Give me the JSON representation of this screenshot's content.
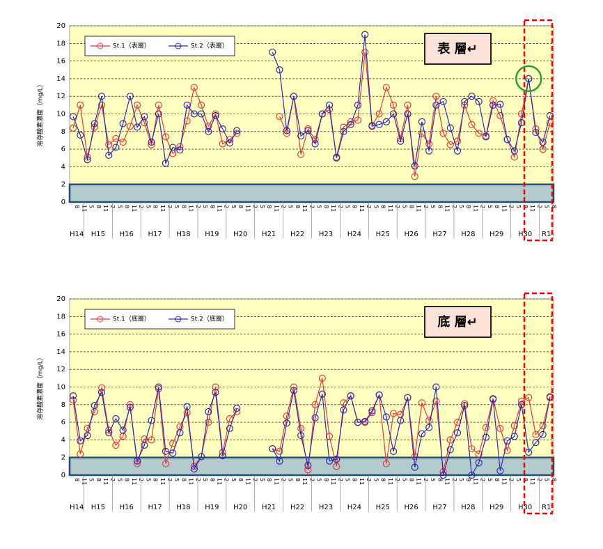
{
  "chart_data": [
    {
      "type": "line",
      "ylabel": "溶存酸素濃度（mg/L）",
      "annotation": "表 層↵",
      "categories": [
        "8",
        "11",
        "5",
        "8",
        "11",
        "2",
        "5",
        "8",
        "11",
        "2",
        "5",
        "8",
        "11",
        "2",
        "5",
        "8",
        "11",
        "2",
        "5",
        "8",
        "11",
        "2",
        "5",
        "8",
        "11",
        "2",
        "5",
        "8",
        "11",
        "2",
        "5",
        "8",
        "11",
        "2",
        "5",
        "8",
        "11",
        "2",
        "5",
        "8",
        "11",
        "2",
        "5",
        "8",
        "11",
        "2",
        "5",
        "8",
        "11",
        "2",
        "5",
        "8",
        "11",
        "2",
        "5",
        "8",
        "11",
        "2",
        "5",
        "8",
        "11",
        "2",
        "5",
        "8",
        "11",
        "2",
        "5",
        "8"
      ],
      "x_groups": [
        {
          "label": "H14",
          "span": 2
        },
        {
          "label": "H15",
          "span": 4
        },
        {
          "label": "H16",
          "span": 4
        },
        {
          "label": "H17",
          "span": 4
        },
        {
          "label": "H18",
          "span": 4
        },
        {
          "label": "H19",
          "span": 4
        },
        {
          "label": "H20",
          "span": 4
        },
        {
          "label": "H21",
          "span": 4
        },
        {
          "label": "H22",
          "span": 4
        },
        {
          "label": "H23",
          "span": 4
        },
        {
          "label": "H24",
          "span": 4
        },
        {
          "label": "H25",
          "span": 4
        },
        {
          "label": "H26",
          "span": 4
        },
        {
          "label": "H27",
          "span": 4
        },
        {
          "label": "H28",
          "span": 4
        },
        {
          "label": "H29",
          "span": 4
        },
        {
          "label": "H30",
          "span": 4
        },
        {
          "label": "R1",
          "span": 2
        }
      ],
      "ylim": [
        0,
        20
      ],
      "yticks": [
        0,
        2,
        4,
        6,
        8,
        10,
        12,
        14,
        16,
        18,
        20
      ],
      "grid": true,
      "band": [
        0,
        2
      ],
      "series": [
        {
          "name": "St.1（表層）",
          "color": "#e8383d",
          "values": [
            8.4,
            11,
            5.1,
            8.5,
            11,
            6.5,
            7.2,
            6.8,
            8.6,
            11,
            9,
            6.5,
            11,
            7.4,
            5.5,
            6.3,
            9.2,
            13,
            11,
            8.6,
            10,
            6.6,
            7.1,
            7.8,
            null,
            null,
            null,
            null,
            null,
            9.7,
            7.8,
            12,
            5.4,
            8.3,
            7.1,
            10,
            10.5,
            5.1,
            8.5,
            9.1,
            9.3,
            17,
            8.7,
            10,
            13,
            11,
            7.2,
            11,
            2.9,
            7.8,
            6.6,
            12,
            7.8,
            6.5,
            6.9,
            11,
            8.8,
            7.8,
            7.5,
            11.5,
            9.8,
            7.1,
            5.1,
            10,
            14,
            8.3,
            6,
            9
          ]
        },
        {
          "name": "St.2（表層）",
          "color": "#2b2bb5",
          "values": [
            9.7,
            7.6,
            4.8,
            8.9,
            12,
            5.3,
            6.2,
            8.9,
            12,
            8.5,
            9.7,
            6.8,
            10,
            4.4,
            6.2,
            5.9,
            11,
            10,
            10,
            8,
            9.8,
            8.3,
            6.7,
            8.1,
            null,
            null,
            null,
            null,
            17,
            15,
            8.1,
            12,
            7.5,
            8.1,
            6.6,
            10,
            11,
            5,
            8,
            8.8,
            11,
            19,
            8.6,
            8.8,
            9.1,
            10,
            6.9,
            10,
            4.1,
            9.1,
            5.8,
            11,
            11.4,
            8.4,
            5.8,
            11.4,
            12,
            11.4,
            7.4,
            11,
            11.1,
            7.1,
            5.8,
            9,
            14,
            7.9,
            6.8,
            9.8
          ]
        }
      ]
    },
    {
      "type": "line",
      "ylabel": "溶存酸素濃度（mg/L）",
      "annotation": "底 層↵",
      "categories": [
        "8",
        "11",
        "5",
        "8",
        "11",
        "2",
        "5",
        "8",
        "11",
        "2",
        "5",
        "8",
        "11",
        "2",
        "5",
        "8",
        "11",
        "2",
        "5",
        "8",
        "11",
        "2",
        "5",
        "8",
        "11",
        "2",
        "5",
        "8",
        "11",
        "2",
        "5",
        "8",
        "11",
        "2",
        "5",
        "8",
        "11",
        "2",
        "5",
        "8",
        "11",
        "2",
        "5",
        "8",
        "11",
        "2",
        "5",
        "8",
        "11",
        "2",
        "5",
        "8",
        "11",
        "2",
        "5",
        "8",
        "11",
        "2",
        "5",
        "8",
        "11",
        "2",
        "5",
        "8",
        "11",
        "2",
        "5",
        "8"
      ],
      "x_groups": [
        {
          "label": "H14",
          "span": 2
        },
        {
          "label": "H15",
          "span": 4
        },
        {
          "label": "H16",
          "span": 4
        },
        {
          "label": "H17",
          "span": 4
        },
        {
          "label": "H18",
          "span": 4
        },
        {
          "label": "H19",
          "span": 4
        },
        {
          "label": "H20",
          "span": 4
        },
        {
          "label": "H21",
          "span": 4
        },
        {
          "label": "H22",
          "span": 4
        },
        {
          "label": "H23",
          "span": 4
        },
        {
          "label": "H24",
          "span": 4
        },
        {
          "label": "H25",
          "span": 4
        },
        {
          "label": "H26",
          "span": 4
        },
        {
          "label": "H27",
          "span": 4
        },
        {
          "label": "H28",
          "span": 4
        },
        {
          "label": "H29",
          "span": 4
        },
        {
          "label": "H30",
          "span": 4
        },
        {
          "label": "R1",
          "span": 2
        }
      ],
      "ylim": [
        0,
        20
      ],
      "yticks": [
        0,
        2,
        4,
        6,
        8,
        10,
        12,
        14,
        16,
        18,
        20
      ],
      "grid": true,
      "band": [
        0,
        2
      ],
      "series": [
        {
          "name": "St.1（底層）",
          "color": "#e8383d",
          "values": [
            8.5,
            2.4,
            5.3,
            7.2,
            9.9,
            5.1,
            3.4,
            4.4,
            8,
            1.3,
            4.1,
            4,
            9.8,
            1.3,
            3.6,
            5.5,
            7.1,
            1,
            2.1,
            6,
            10,
            2.6,
            6.4,
            7.2,
            null,
            null,
            null,
            null,
            3,
            2.7,
            6.7,
            10,
            5.3,
            0.6,
            8,
            11,
            4.4,
            1,
            8.2,
            9,
            6,
            6,
            7.1,
            9.1,
            1.3,
            7,
            6.9,
            8.8,
            2.1,
            8.2,
            6.2,
            8.4,
            0.4,
            4,
            6,
            8.1,
            3,
            2.4,
            5.4,
            8.7,
            5.3,
            2.8,
            5.6,
            8.4,
            8.8,
            4.6,
            5.6,
            8.8
          ]
        },
        {
          "name": "St.2（底層）",
          "color": "#2b2bb5",
          "values": [
            9,
            3.9,
            4.5,
            7.9,
            9.4,
            4.8,
            6.4,
            5.1,
            7.7,
            1.6,
            3.4,
            6.2,
            10,
            2.7,
            2.5,
            4.8,
            7.8,
            0.7,
            2.1,
            7.2,
            9.4,
            2.2,
            5.3,
            7.6,
            null,
            null,
            null,
            null,
            3,
            1.6,
            5.9,
            9.6,
            4.5,
            1.1,
            6.5,
            9.2,
            1.6,
            1.8,
            7.4,
            9,
            6,
            6.1,
            7.3,
            9.1,
            6.6,
            2.7,
            6.2,
            8.8,
            0.9,
            4.7,
            5.4,
            10,
            0,
            2.9,
            4.8,
            7.9,
            0,
            1.4,
            4.3,
            8.6,
            0.5,
            3.9,
            4.4,
            8,
            2.6,
            3.7,
            4.6,
            8.9
          ]
        }
      ]
    }
  ]
}
